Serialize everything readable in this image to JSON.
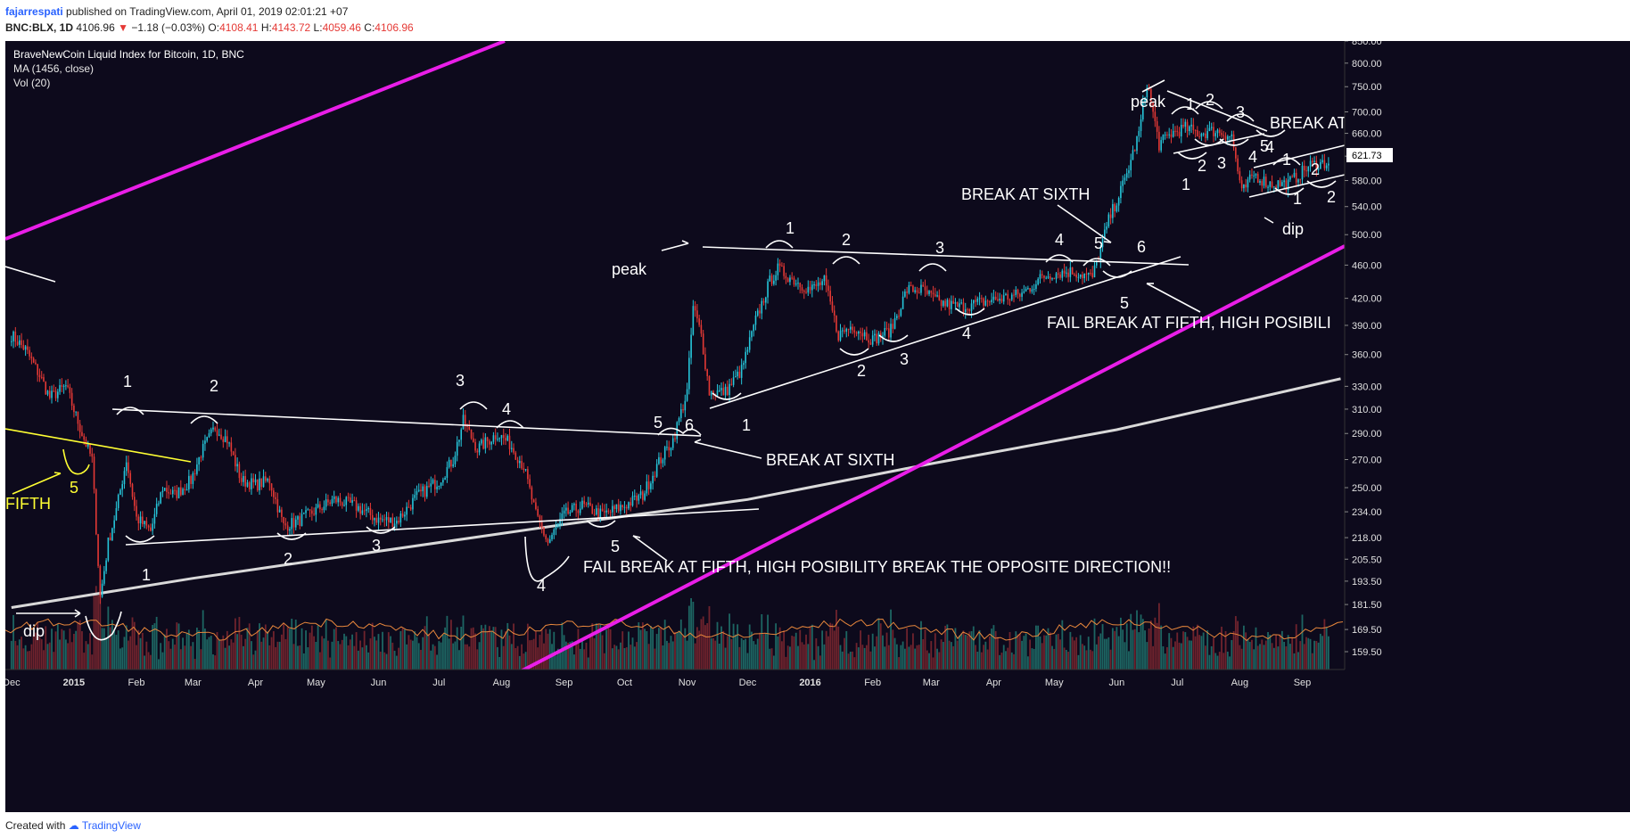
{
  "header": {
    "author": "fajarrespati",
    "published": "published on TradingView.com, April 01, 2019 02:01:21 +07",
    "symbol_line": {
      "symbol": "BNC:BLX, 1D",
      "price": "4106.96",
      "arrow": "▼",
      "change": "−1.18 (−0.03%)",
      "o_label": "O:",
      "o": "4108.41",
      "h_label": "H:",
      "h": "4143.72",
      "l_label": "L:",
      "l": "4059.46",
      "c_label": "C:",
      "c": "4106.96"
    }
  },
  "legend": {
    "title": "BraveNewCoin Liquid Index for Bitcoin, 1D, BNC",
    "ma": "MA (1456, close)",
    "vol": "Vol (20)"
  },
  "footer": {
    "created_with": "Created with",
    "brand": "TradingView"
  },
  "colors": {
    "background": "#0d0a1c",
    "up": "#26c6da",
    "down": "#e53935",
    "channel": "#e91ee8",
    "ma": "#d9d9d9",
    "annotation": "#ffffff",
    "fifth": "#ffff33",
    "volume_ma": "#e8873c",
    "price_box": "#ffffff"
  },
  "chart_data": {
    "type": "candlestick",
    "title": "BraveNewCoin Liquid Index for Bitcoin, 1D, BNC",
    "x_axis": {
      "labels": [
        "Dec",
        "2015",
        "Feb",
        "Mar",
        "Apr",
        "May",
        "Jun",
        "Jul",
        "Aug",
        "Sep",
        "Oct",
        "Nov",
        "Dec",
        "2016",
        "Feb",
        "Mar",
        "Apr",
        "May",
        "Jun",
        "Jul",
        "Aug",
        "Sep"
      ],
      "label_dates": [
        "2014-12-01",
        "2015-01-01",
        "2015-02-01",
        "2015-03-01",
        "2015-04-01",
        "2015-05-01",
        "2015-06-01",
        "2015-07-01",
        "2015-08-01",
        "2015-09-01",
        "2015-10-01",
        "2015-11-01",
        "2015-12-01",
        "2016-01-01",
        "2016-02-01",
        "2016-03-01",
        "2016-04-01",
        "2016-05-01",
        "2016-06-01",
        "2016-07-01",
        "2016-08-01",
        "2016-09-01"
      ],
      "range": [
        "2014-12-01",
        "2016-09-20"
      ]
    },
    "y_axis": {
      "scale": "log",
      "ticks": [
        "159.50",
        "169.50",
        "181.50",
        "193.50",
        "205.50",
        "218.00",
        "234.00",
        "250.00",
        "270.00",
        "290.00",
        "310.00",
        "330.00",
        "360.00",
        "390.00",
        "420.00",
        "460.00",
        "500.00",
        "540.00",
        "580.00",
        "620.00",
        "660.00",
        "700.00",
        "750.00",
        "800.00",
        "850.00"
      ],
      "range": [
        153,
        850
      ],
      "last_price_label": "621.73"
    },
    "series": [
      {
        "type": "candles",
        "points": [
          [
            "2014-12-01",
            380
          ],
          [
            "2014-12-08",
            365
          ],
          [
            "2014-12-15",
            340
          ],
          [
            "2014-12-20",
            320
          ],
          [
            "2014-12-28",
            330
          ],
          [
            "2015-01-05",
            290
          ],
          [
            "2015-01-10",
            270
          ],
          [
            "2015-01-14",
            185
          ],
          [
            "2015-01-18",
            215
          ],
          [
            "2015-01-22",
            235
          ],
          [
            "2015-01-27",
            270
          ],
          [
            "2015-02-01",
            230
          ],
          [
            "2015-02-08",
            222
          ],
          [
            "2015-02-14",
            250
          ],
          [
            "2015-02-20",
            245
          ],
          [
            "2015-02-28",
            255
          ],
          [
            "2015-03-05",
            275
          ],
          [
            "2015-03-12",
            295
          ],
          [
            "2015-03-18",
            285
          ],
          [
            "2015-03-25",
            255
          ],
          [
            "2015-04-01",
            252
          ],
          [
            "2015-04-08",
            255
          ],
          [
            "2015-04-15",
            225
          ],
          [
            "2015-04-22",
            228
          ],
          [
            "2015-05-01",
            235
          ],
          [
            "2015-05-10",
            242
          ],
          [
            "2015-05-20",
            238
          ],
          [
            "2015-06-01",
            229
          ],
          [
            "2015-06-10",
            228
          ],
          [
            "2015-06-20",
            244
          ],
          [
            "2015-07-01",
            255
          ],
          [
            "2015-07-08",
            270
          ],
          [
            "2015-07-13",
            300
          ],
          [
            "2015-07-20",
            278
          ],
          [
            "2015-07-30",
            290
          ],
          [
            "2015-08-05",
            282
          ],
          [
            "2015-08-12",
            265
          ],
          [
            "2015-08-18",
            232
          ],
          [
            "2015-08-24",
            215
          ],
          [
            "2015-09-01",
            232
          ],
          [
            "2015-09-10",
            238
          ],
          [
            "2015-09-20",
            232
          ],
          [
            "2015-10-01",
            238
          ],
          [
            "2015-10-10",
            245
          ],
          [
            "2015-10-18",
            268
          ],
          [
            "2015-10-25",
            285
          ],
          [
            "2015-11-01",
            325
          ],
          [
            "2015-11-04",
            410
          ],
          [
            "2015-11-08",
            380
          ],
          [
            "2015-11-12",
            325
          ],
          [
            "2015-11-20",
            325
          ],
          [
            "2015-11-28",
            345
          ],
          [
            "2015-12-05",
            395
          ],
          [
            "2015-12-12",
            440
          ],
          [
            "2015-12-16",
            455
          ],
          [
            "2015-12-25",
            440
          ],
          [
            "2016-01-01",
            430
          ],
          [
            "2016-01-08",
            440
          ],
          [
            "2016-01-15",
            380
          ],
          [
            "2016-01-22",
            390
          ],
          [
            "2016-02-01",
            375
          ],
          [
            "2016-02-10",
            385
          ],
          [
            "2016-02-18",
            430
          ],
          [
            "2016-02-25",
            430
          ],
          [
            "2016-03-05",
            415
          ],
          [
            "2016-03-15",
            410
          ],
          [
            "2016-03-25",
            415
          ],
          [
            "2016-04-05",
            420
          ],
          [
            "2016-04-15",
            425
          ],
          [
            "2016-04-25",
            445
          ],
          [
            "2016-05-01",
            450
          ],
          [
            "2016-05-10",
            452
          ],
          [
            "2016-05-20",
            445
          ],
          [
            "2016-05-28",
            520
          ],
          [
            "2016-06-05",
            580
          ],
          [
            "2016-06-12",
            660
          ],
          [
            "2016-06-16",
            760
          ],
          [
            "2016-06-22",
            640
          ],
          [
            "2016-06-28",
            660
          ],
          [
            "2016-07-05",
            670
          ],
          [
            "2016-07-12",
            660
          ],
          [
            "2016-07-20",
            665
          ],
          [
            "2016-07-28",
            655
          ],
          [
            "2016-08-02",
            560
          ],
          [
            "2016-08-08",
            590
          ],
          [
            "2016-08-15",
            575
          ],
          [
            "2016-08-25",
            575
          ],
          [
            "2016-09-05",
            605
          ],
          [
            "2016-09-15",
            610
          ]
        ]
      },
      {
        "name": "MA (1456, close)",
        "type": "line",
        "points": [
          [
            "2014-12-01",
            180
          ],
          [
            "2015-03-01",
            195
          ],
          [
            "2015-06-01",
            210
          ],
          [
            "2015-09-01",
            226
          ],
          [
            "2015-12-01",
            242
          ],
          [
            "2016-03-01",
            267
          ],
          [
            "2016-06-01",
            293
          ],
          [
            "2016-09-20",
            337
          ]
        ]
      },
      {
        "name": "Vol (20)",
        "type": "histogram",
        "points": []
      }
    ],
    "annotations": {
      "texts": [
        "peak",
        "peak",
        "dip",
        "dip",
        "FIFTH",
        "BREAK AT SIXTH",
        "BREAK AT SIXTH",
        "BREAK AT",
        "FAIL BREAK AT FIFTH, HIGH POSIBILITY BREAK THE OPPOSITE DIRECTION!!",
        "FAIL BREAK AT FIFTH, HIGH POSIBILI"
      ],
      "wave_numbers": [
        "1",
        "2",
        "3",
        "4",
        "5",
        "6"
      ]
    }
  }
}
